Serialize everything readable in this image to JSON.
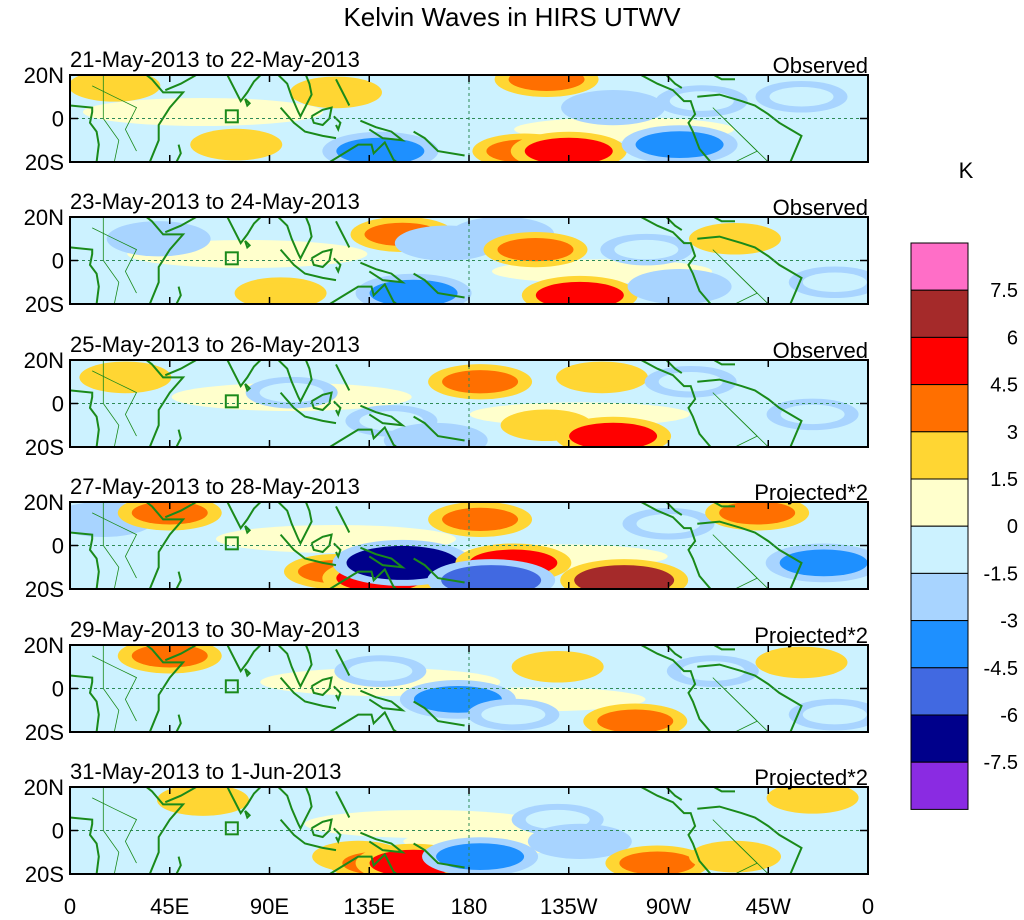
{
  "chart_data": {
    "type": "heatmap",
    "title": "Kelvin Waves in HIRS UTWV",
    "colorbar": {
      "unit": "K",
      "levels": [
        "7.5",
        "6",
        "4.5",
        "3",
        "1.5",
        "0",
        "-1.5",
        "-3",
        "-4.5",
        "-6",
        "-7.5"
      ],
      "colors": [
        "#ff6ec7",
        "#a52a2a",
        "#ff0000",
        "#ff6f00",
        "#ffd633",
        "#ffffcc",
        "#ccf2ff",
        "#a8d4ff",
        "#1e90ff",
        "#4169e1",
        "#00008b",
        "#8a2be2"
      ]
    },
    "x_axis": {
      "ticks": [
        "0",
        "45E",
        "90E",
        "135E",
        "180",
        "135W",
        "90W",
        "45W",
        "0"
      ],
      "range": [
        0,
        360
      ]
    },
    "y_axis": {
      "ticks": [
        "20N",
        "0",
        "20S"
      ],
      "range": [
        -20,
        20
      ]
    },
    "panels": [
      {
        "date_range": "21-May-2013 to 22-May-2013",
        "label": "Observed",
        "anomalies": [
          {
            "lon": 20,
            "lat": 15,
            "value": 1.5
          },
          {
            "lon": 75,
            "lat": -12,
            "value": 1.5
          },
          {
            "lon": 120,
            "lat": 12,
            "value": 1.5
          },
          {
            "lon": 140,
            "lat": -15,
            "value": -4.5
          },
          {
            "lon": 205,
            "lat": -15,
            "value": 3
          },
          {
            "lon": 215,
            "lat": 18,
            "value": 3
          },
          {
            "lon": 225,
            "lat": -15,
            "value": 4.5
          },
          {
            "lon": 245,
            "lat": 5,
            "value": -3
          },
          {
            "lon": 275,
            "lat": -12,
            "value": -4.5
          },
          {
            "lon": 285,
            "lat": 8,
            "value": -1.5
          },
          {
            "lon": 330,
            "lat": 10,
            "value": -1.5
          }
        ]
      },
      {
        "date_range": "23-May-2013 to 24-May-2013",
        "label": "Observed",
        "anomalies": [
          {
            "lon": 40,
            "lat": 10,
            "value": -3
          },
          {
            "lon": 95,
            "lat": -15,
            "value": 1.5
          },
          {
            "lon": 150,
            "lat": 12,
            "value": 3
          },
          {
            "lon": 155,
            "lat": -15,
            "value": -4.5
          },
          {
            "lon": 170,
            "lat": 8,
            "value": -3
          },
          {
            "lon": 195,
            "lat": 12,
            "value": -3
          },
          {
            "lon": 210,
            "lat": 5,
            "value": 3
          },
          {
            "lon": 230,
            "lat": -16,
            "value": 4.5
          },
          {
            "lon": 260,
            "lat": 5,
            "value": -1.5
          },
          {
            "lon": 275,
            "lat": -12,
            "value": -3
          },
          {
            "lon": 300,
            "lat": 10,
            "value": 1.5
          },
          {
            "lon": 345,
            "lat": -10,
            "value": -1.5
          }
        ]
      },
      {
        "date_range": "25-May-2013 to 26-May-2013",
        "label": "Observed",
        "anomalies": [
          {
            "lon": 25,
            "lat": 12,
            "value": 1.5
          },
          {
            "lon": 100,
            "lat": 5,
            "value": -1.5
          },
          {
            "lon": 145,
            "lat": -8,
            "value": -1.5
          },
          {
            "lon": 165,
            "lat": -17,
            "value": -3
          },
          {
            "lon": 185,
            "lat": 10,
            "value": 3
          },
          {
            "lon": 215,
            "lat": -10,
            "value": 1.5
          },
          {
            "lon": 245,
            "lat": -15,
            "value": 4.5
          },
          {
            "lon": 240,
            "lat": 12,
            "value": 1.5
          },
          {
            "lon": 280,
            "lat": 10,
            "value": -1.5
          },
          {
            "lon": 335,
            "lat": -5,
            "value": -1.5
          }
        ]
      },
      {
        "date_range": "27-May-2013 to 28-May-2013",
        "label": "Projected*2",
        "anomalies": [
          {
            "lon": 15,
            "lat": 12,
            "value": -3
          },
          {
            "lon": 45,
            "lat": 15,
            "value": 3
          },
          {
            "lon": 120,
            "lat": -12,
            "value": 3
          },
          {
            "lon": 140,
            "lat": -15,
            "value": 4.5
          },
          {
            "lon": 150,
            "lat": -8,
            "value": -7.5
          },
          {
            "lon": 185,
            "lat": 12,
            "value": 3
          },
          {
            "lon": 200,
            "lat": -8,
            "value": 4.5
          },
          {
            "lon": 190,
            "lat": -16,
            "value": -6
          },
          {
            "lon": 250,
            "lat": -16,
            "value": 6
          },
          {
            "lon": 270,
            "lat": 10,
            "value": -1.5
          },
          {
            "lon": 310,
            "lat": 15,
            "value": 3
          },
          {
            "lon": 340,
            "lat": -8,
            "value": -4.5
          }
        ]
      },
      {
        "date_range": "29-May-2013 to 30-May-2013",
        "label": "Projected*2",
        "anomalies": [
          {
            "lon": 45,
            "lat": 15,
            "value": 3
          },
          {
            "lon": 140,
            "lat": 8,
            "value": -1.5
          },
          {
            "lon": 175,
            "lat": -5,
            "value": -4.5
          },
          {
            "lon": 200,
            "lat": -12,
            "value": -1.5
          },
          {
            "lon": 220,
            "lat": 10,
            "value": 1.5
          },
          {
            "lon": 255,
            "lat": -15,
            "value": 3
          },
          {
            "lon": 290,
            "lat": 8,
            "value": -1.5
          },
          {
            "lon": 330,
            "lat": 12,
            "value": 1.5
          },
          {
            "lon": 345,
            "lat": -12,
            "value": -1.5
          }
        ]
      },
      {
        "date_range": "31-May-2013 to 1-Jun-2013",
        "label": "Projected*2",
        "anomalies": [
          {
            "lon": 60,
            "lat": 14,
            "value": 1.5
          },
          {
            "lon": 130,
            "lat": -12,
            "value": 1.5
          },
          {
            "lon": 140,
            "lat": -15,
            "value": 3
          },
          {
            "lon": 155,
            "lat": -15,
            "value": 4.5
          },
          {
            "lon": 185,
            "lat": -12,
            "value": -4.5
          },
          {
            "lon": 220,
            "lat": 5,
            "value": -1.5
          },
          {
            "lon": 230,
            "lat": -5,
            "value": -3
          },
          {
            "lon": 265,
            "lat": -15,
            "value": 3
          },
          {
            "lon": 300,
            "lat": -12,
            "value": 1.5
          },
          {
            "lon": 335,
            "lat": 15,
            "value": 1.5
          }
        ]
      }
    ]
  }
}
